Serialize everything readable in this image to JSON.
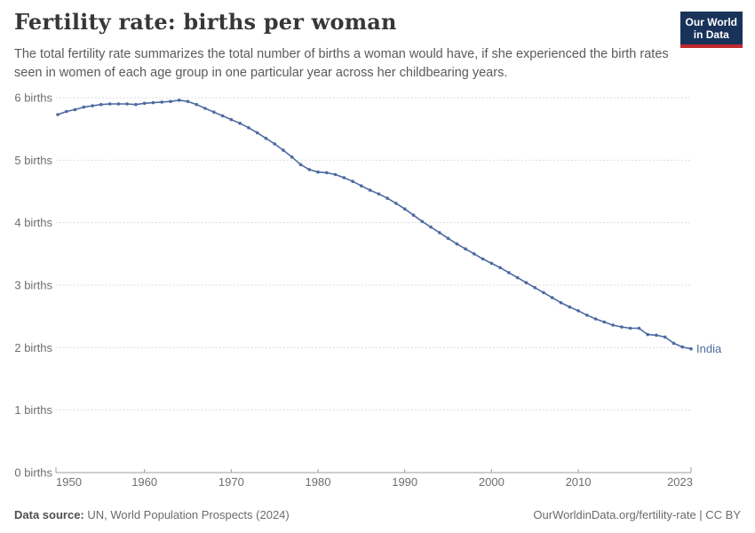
{
  "header": {
    "title": "Fertility rate: births per woman",
    "subtitle": "The total fertility rate summarizes the total number of births a woman would have, if she experienced the birth rates seen in women of each age group in one particular year across her childbearing years."
  },
  "logo": {
    "line1": "Our World",
    "line2": "in Data"
  },
  "chart_data": {
    "type": "line",
    "title": "Fertility rate: births per woman",
    "entity_label": "India",
    "xlabel": "",
    "ylabel": "births",
    "xlim": [
      1950,
      2023
    ],
    "ylim": [
      0,
      6
    ],
    "grid": "horizontal-dashed",
    "legend_position": "end-of-line",
    "x_ticks": [
      1950,
      1960,
      1970,
      1980,
      1990,
      2000,
      2010,
      2023
    ],
    "y_ticks": [
      {
        "v": 0,
        "label": "0 births"
      },
      {
        "v": 1,
        "label": "1 births"
      },
      {
        "v": 2,
        "label": "2 births"
      },
      {
        "v": 3,
        "label": "3 births"
      },
      {
        "v": 4,
        "label": "4 births"
      },
      {
        "v": 5,
        "label": "5 births"
      },
      {
        "v": 6,
        "label": "6 births"
      }
    ],
    "x": [
      1950,
      1951,
      1952,
      1953,
      1954,
      1955,
      1956,
      1957,
      1958,
      1959,
      1960,
      1961,
      1962,
      1963,
      1964,
      1965,
      1966,
      1967,
      1968,
      1969,
      1970,
      1971,
      1972,
      1973,
      1974,
      1975,
      1976,
      1977,
      1978,
      1979,
      1980,
      1981,
      1982,
      1983,
      1984,
      1985,
      1986,
      1987,
      1988,
      1989,
      1990,
      1991,
      1992,
      1993,
      1994,
      1995,
      1996,
      1997,
      1998,
      1999,
      2000,
      2001,
      2002,
      2003,
      2004,
      2005,
      2006,
      2007,
      2008,
      2009,
      2010,
      2011,
      2012,
      2013,
      2014,
      2015,
      2016,
      2017,
      2018,
      2019,
      2020,
      2021,
      2022,
      2023
    ],
    "series": [
      {
        "name": "India",
        "values": [
          5.73,
          5.78,
          5.81,
          5.85,
          5.87,
          5.89,
          5.9,
          5.9,
          5.9,
          5.89,
          5.91,
          5.92,
          5.93,
          5.94,
          5.96,
          5.94,
          5.89,
          5.83,
          5.77,
          5.71,
          5.65,
          5.59,
          5.52,
          5.44,
          5.35,
          5.26,
          5.16,
          5.05,
          4.93,
          4.85,
          4.81,
          4.8,
          4.77,
          4.72,
          4.66,
          4.59,
          4.52,
          4.46,
          4.39,
          4.31,
          4.22,
          4.12,
          4.02,
          3.93,
          3.84,
          3.75,
          3.66,
          3.58,
          3.5,
          3.42,
          3.35,
          3.28,
          3.2,
          3.12,
          3.04,
          2.96,
          2.88,
          2.8,
          2.72,
          2.65,
          2.59,
          2.52,
          2.46,
          2.41,
          2.36,
          2.33,
          2.31,
          2.31,
          2.21,
          2.2,
          2.17,
          2.07,
          2.01,
          1.98
        ]
      }
    ]
  },
  "colors": {
    "line": "#4c6aa0",
    "grid": "#dedede",
    "axis": "#9e9e9e",
    "tick_text": "#6e6e6e",
    "title_text": "#373737",
    "subtitle_text": "#5a5a5a",
    "footer_text": "#6b6b6b",
    "logo_bg": "#19325a",
    "logo_accent": "#c0282f"
  },
  "footer": {
    "source_label": "Data source:",
    "source_value": " UN, World Population Prospects (2024)",
    "right_text": "OurWorldinData.org/fertility-rate | CC BY"
  }
}
